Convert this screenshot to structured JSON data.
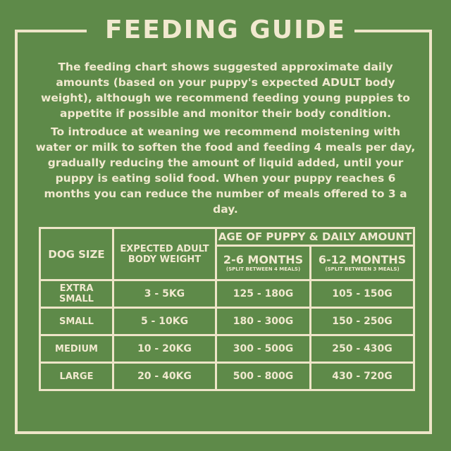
{
  "title": "FEEDING GUIDE",
  "paragraphs": [
    "The feeding chart shows suggested approximate daily amounts (based on your puppy's expected ADULT body weight), although we recommend feeding young puppies to appetite if possible and monitor their body condition.",
    "To introduce at weaning we recommend moistening with water or milk to soften the food and feeding 4 meals per day, gradually reducing the amount of liquid added, until your puppy is eating solid food. When your puppy reaches 6 months you can reduce the number of meals offered to 3 a day."
  ],
  "table": {
    "headers": {
      "dog_size": "DOG SIZE",
      "weight": "EXPECTED ADULT BODY WEIGHT",
      "age": "AGE OF PUPPY & DAILY AMOUNT",
      "col1": "2-6 MONTHS",
      "col1_note": "(SPLIT BETWEEN 4 MEALS)",
      "col2": "6-12 MONTHS",
      "col2_note": "(SPLIT BETWEEN 3 MEALS)"
    },
    "rows": [
      [
        "EXTRA SMALL",
        "3 - 5KG",
        "125 - 180G",
        "105 - 150G"
      ],
      [
        "SMALL",
        "5 - 10KG",
        "180 - 300G",
        "150 - 250G"
      ],
      [
        "MEDIUM",
        "10 - 20KG",
        "300 - 500G",
        "250 - 430G"
      ],
      [
        "LARGE",
        "20 - 40KG",
        "500 - 800G",
        "430 - 720G"
      ]
    ]
  },
  "colors": {
    "background": "#5e8a49",
    "text": "#f1e9cf"
  }
}
